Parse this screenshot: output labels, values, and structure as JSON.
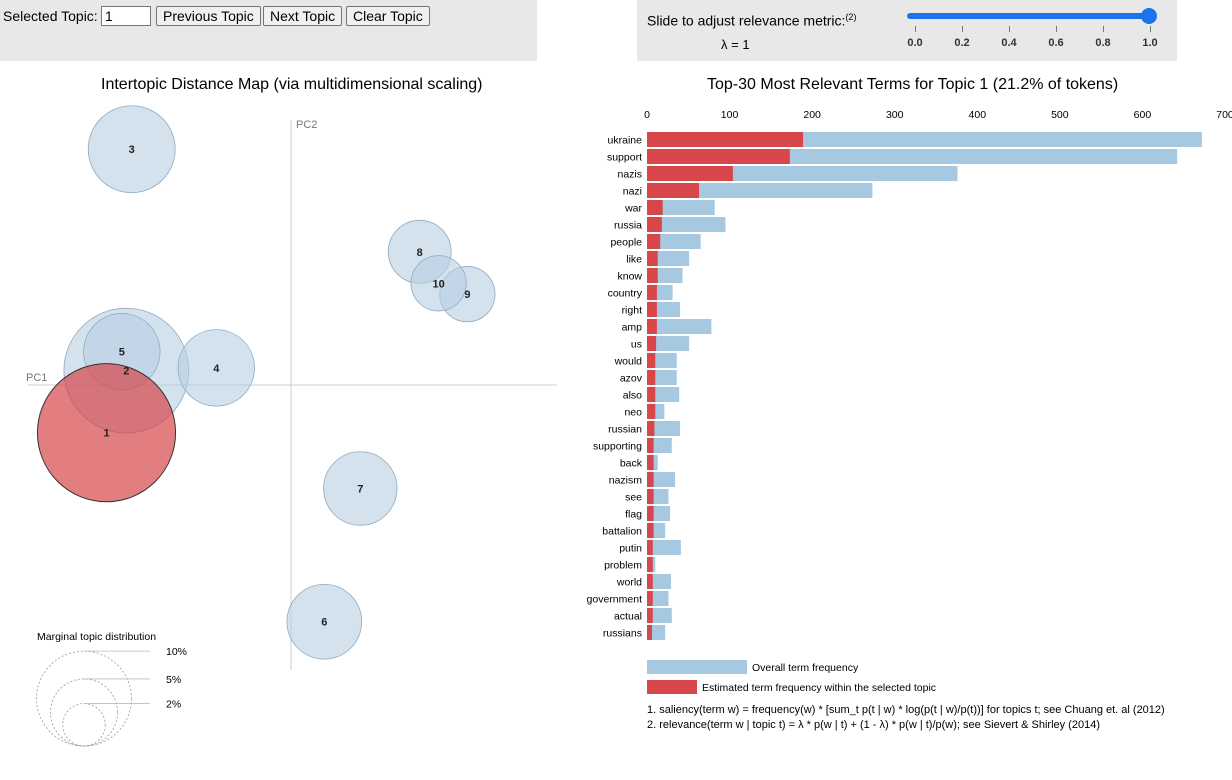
{
  "controls": {
    "selected_topic_label": "Selected Topic:",
    "selected_topic_value": "1",
    "prev_button": "Previous Topic",
    "next_button": "Next Topic",
    "clear_button": "Clear Topic",
    "slider_label": "Slide to adjust relevance metric:",
    "slider_footnote": "(2)",
    "lambda_text": "λ = 1",
    "lambda_value": 1.0,
    "slider_ticks": [
      "0.0",
      "0.2",
      "0.4",
      "0.6",
      "0.8",
      "1.0"
    ]
  },
  "intertopic": {
    "title": "Intertopic Distance Map (via multidimensional scaling)",
    "axis_pc1": "PC1",
    "axis_pc2": "PC2",
    "selected_topic": "1",
    "topics": [
      {
        "id": "1",
        "pc1": -0.205,
        "pc2": -0.053,
        "size": 21.2,
        "selected": true
      },
      {
        "id": "2",
        "pc1": -0.183,
        "pc2": 0.016,
        "size": 17.3,
        "selected": false
      },
      {
        "id": "3",
        "pc1": -0.177,
        "pc2": 0.262,
        "size": 8.4,
        "selected": false
      },
      {
        "id": "4",
        "pc1": -0.083,
        "pc2": 0.019,
        "size": 6.5,
        "selected": false
      },
      {
        "id": "5",
        "pc1": -0.188,
        "pc2": 0.037,
        "size": 6.5,
        "selected": false
      },
      {
        "id": "6",
        "pc1": 0.037,
        "pc2": -0.263,
        "size": 6.2,
        "selected": false
      },
      {
        "id": "7",
        "pc1": 0.077,
        "pc2": -0.115,
        "size": 6.0,
        "selected": false
      },
      {
        "id": "8",
        "pc1": 0.143,
        "pc2": 0.148,
        "size": 4.4,
        "selected": false
      },
      {
        "id": "9",
        "pc1": 0.196,
        "pc2": 0.101,
        "size": 3.4,
        "selected": false
      },
      {
        "id": "10",
        "pc1": 0.164,
        "pc2": 0.113,
        "size": 3.4,
        "selected": false
      }
    ],
    "legend_title": "Marginal topic distribution",
    "legend_labels": [
      "2%",
      "5%",
      "10%"
    ],
    "legend_values": [
      2,
      5,
      10
    ]
  },
  "barchart": {
    "chart_data": {
      "type": "bar",
      "orientation": "horizontal",
      "title": "Top-30 Most Relevant Terms for Topic 1 (21.2% of tokens)",
      "xlim": [
        0,
        700
      ],
      "xticks": [
        "0",
        "100",
        "200",
        "300",
        "400",
        "500",
        "600",
        "700"
      ],
      "xtick_values": [
        0,
        100,
        200,
        300,
        400,
        500,
        600,
        700
      ],
      "categories": [
        "ukraine",
        "support",
        "nazis",
        "nazi",
        "war",
        "russia",
        "people",
        "like",
        "know",
        "country",
        "right",
        "amp",
        "us",
        "would",
        "azov",
        "also",
        "neo",
        "russian",
        "supporting",
        "back",
        "nazism",
        "see",
        "flag",
        "battalion",
        "putin",
        "problem",
        "world",
        "government",
        "actual",
        "russians"
      ],
      "series": [
        {
          "name": "Overall term frequency",
          "color": "#a6c8e0",
          "values": [
            672,
            642,
            376,
            273,
            82,
            95,
            65,
            51,
            43,
            31,
            40,
            78,
            51,
            36,
            36,
            39,
            21,
            40,
            30,
            13,
            34,
            26,
            28,
            22,
            41,
            10,
            29,
            26,
            30,
            22
          ]
        },
        {
          "name": "Estimated term frequency within the selected topic",
          "color": "#d6464a",
          "values": [
            189,
            173,
            104,
            63,
            19,
            18,
            16,
            13,
            13,
            12,
            12,
            12,
            11,
            10,
            10,
            10,
            10,
            9,
            8,
            8,
            8,
            8,
            8,
            8,
            7,
            7,
            7,
            7,
            7,
            6
          ]
        }
      ]
    },
    "legend": {
      "overall": "Overall term frequency",
      "estimated": "Estimated term frequency within the selected topic"
    },
    "footnote1": "1. saliency(term w) = frequency(w) * [sum_t p(t | w) * log(p(t | w)/p(t))] for topics t; see Chuang et. al (2012)",
    "footnote2": "2. relevance(term w | topic t) = λ * p(w | t) + (1 - λ) * p(w | t)/p(w); see Sievert & Shirley (2014)"
  },
  "colors": {
    "overall": "#a6c8e0",
    "estimated": "#d6464a",
    "topic_circle": "#b7cfe3",
    "selected_circle": "#d6464a",
    "slider": "#1a73e8"
  }
}
